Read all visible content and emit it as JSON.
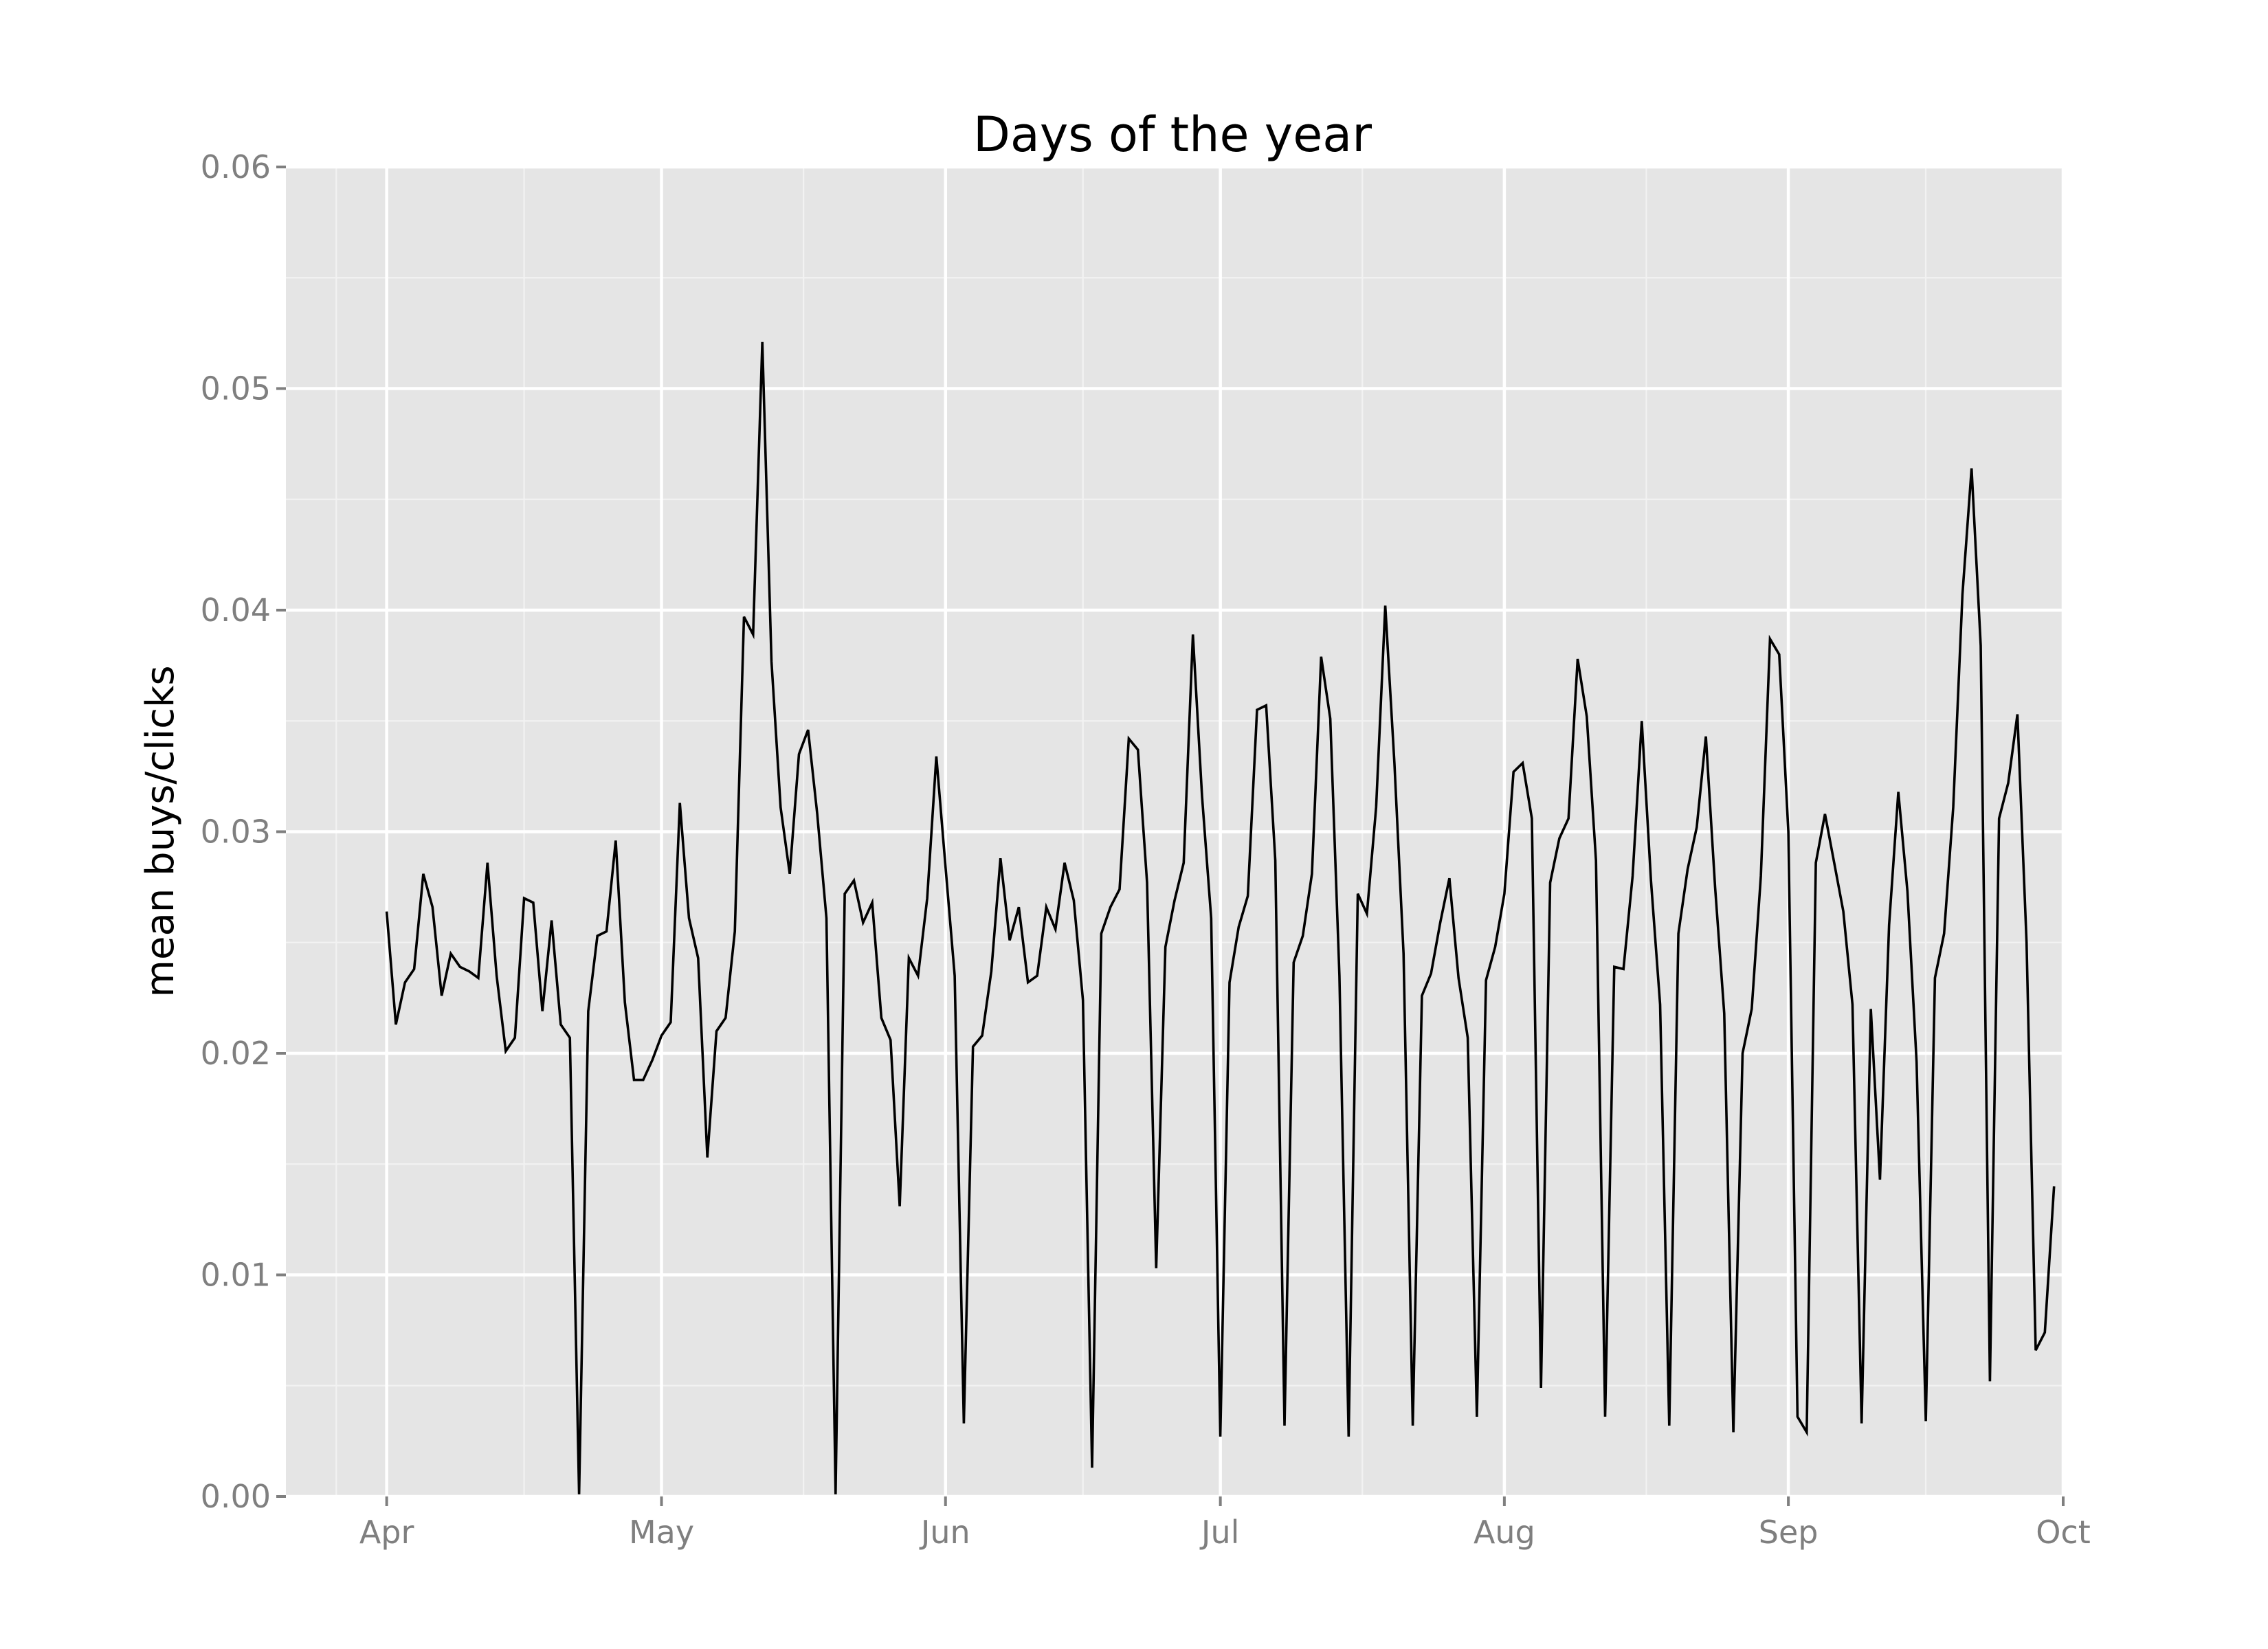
{
  "chart_data": {
    "type": "line",
    "title": "Days of the year",
    "xlabel": "",
    "ylabel": "mean buys/clicks",
    "x_start": "2014-04-01",
    "x_ticks": [
      "Apr",
      "May",
      "Jun",
      "Jul",
      "Aug",
      "Sep",
      "Oct"
    ],
    "x_tick_dates": [
      "2014-04-01",
      "2014-05-01",
      "2014-06-01",
      "2014-07-01",
      "2014-08-01",
      "2014-09-01",
      "2014-10-01"
    ],
    "xlim": [
      "2014-03-21",
      "2014-10-01"
    ],
    "ylim": [
      0,
      0.06
    ],
    "y_ticks": [
      "0.00",
      "0.01",
      "0.02",
      "0.03",
      "0.04",
      "0.05",
      "0.06"
    ],
    "y_tick_values": [
      0.0,
      0.01,
      0.02,
      0.03,
      0.04,
      0.05,
      0.06
    ],
    "grid": true,
    "background": "#e5e5e5",
    "line_color": "#000000",
    "series": [
      {
        "values": [
          0.0264,
          0.0213,
          0.0232,
          0.0238,
          0.0281,
          0.0266,
          0.0226,
          0.0245,
          0.0239,
          0.0237,
          0.0234,
          0.0286,
          0.0235,
          0.0201,
          0.0207,
          0.027,
          0.0268,
          0.0219,
          0.026,
          0.0213,
          0.0207,
          0.0001,
          0.0219,
          0.0253,
          0.0255,
          0.0296,
          0.0223,
          0.0188,
          0.0188,
          0.0197,
          0.0208,
          0.0214,
          0.0313,
          0.0261,
          0.0243,
          0.0153,
          0.021,
          0.0216,
          0.0255,
          0.0397,
          0.0389,
          0.0521,
          0.0377,
          0.0311,
          0.0281,
          0.0335,
          0.0346,
          0.0308,
          0.0261,
          0.0001,
          0.0272,
          0.0278,
          0.0259,
          0.0268,
          0.0216,
          0.0206,
          0.0131,
          0.0243,
          0.0235,
          0.027,
          0.0334,
          0.0284,
          0.0235,
          0.0033,
          0.0203,
          0.0208,
          0.0237,
          0.0288,
          0.0251,
          0.0266,
          0.0232,
          0.0235,
          0.0266,
          0.0256,
          0.0286,
          0.0269,
          0.0224,
          0.0013,
          0.0254,
          0.0266,
          0.0274,
          0.0342,
          0.0337,
          0.0277,
          0.0103,
          0.0248,
          0.0269,
          0.0286,
          0.0389,
          0.0316,
          0.0261,
          0.0027,
          0.0232,
          0.0257,
          0.0271,
          0.0355,
          0.0357,
          0.0287,
          0.0032,
          0.0241,
          0.0253,
          0.0281,
          0.0379,
          0.0351,
          0.0235,
          0.0027,
          0.0272,
          0.0263,
          0.0311,
          0.0402,
          0.0331,
          0.0245,
          0.0032,
          0.0226,
          0.0236,
          0.0259,
          0.0279,
          0.0234,
          0.0207,
          0.0036,
          0.0233,
          0.0248,
          0.0272,
          0.0327,
          0.0331,
          0.0306,
          0.0049,
          0.0277,
          0.0297,
          0.0306,
          0.0378,
          0.0352,
          0.0287,
          0.0036,
          0.0239,
          0.0238,
          0.028,
          0.035,
          0.0278,
          0.0222,
          0.0032,
          0.0254,
          0.0283,
          0.0302,
          0.0343,
          0.0275,
          0.0218,
          0.0029,
          0.02,
          0.022,
          0.028,
          0.0387,
          0.038,
          0.03,
          0.0036,
          0.0029,
          0.0286,
          0.0308,
          0.0286,
          0.0264,
          0.0222,
          0.0033,
          0.022,
          0.0143,
          0.0258,
          0.0318,
          0.0273,
          0.0196,
          0.0034,
          0.0234,
          0.0254,
          0.0311,
          0.0407,
          0.0464,
          0.0384,
          0.0052,
          0.0306,
          0.0322,
          0.0353,
          0.025,
          0.0066,
          0.0074,
          0.014
        ]
      }
    ]
  }
}
